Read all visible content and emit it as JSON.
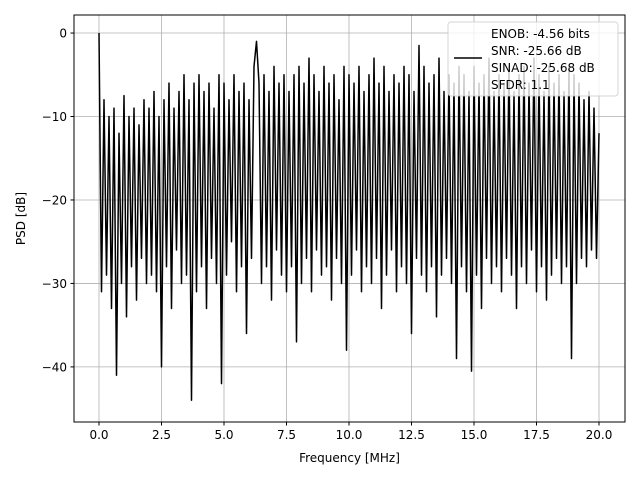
{
  "chart_data": {
    "type": "line",
    "title": "",
    "xlabel": "Frequency [MHz]",
    "ylabel": "PSD [dB]",
    "xlim": [
      -1.0,
      21.04
    ],
    "ylim": [
      -46.6,
      2.16
    ],
    "xticks": [
      0,
      2.5,
      5,
      7.5,
      10,
      12.5,
      15,
      17.5,
      20
    ],
    "xtick_labels": [
      "0.0",
      "2.5",
      "5.0",
      "7.5",
      "10.0",
      "12.5",
      "15.0",
      "17.5",
      "20.0"
    ],
    "yticks": [
      0,
      -10,
      -20,
      -30,
      -40
    ],
    "ytick_labels": [
      "0",
      "−10",
      "−20",
      "−30",
      "−40"
    ],
    "grid": true,
    "legend_placement": "upper-right",
    "legend_entries": [
      "ENOB: -4.56 bits",
      "SNR: -25.66 dB",
      "SINAD: -25.68 dB",
      "SFDR: 1.1"
    ],
    "line_color": "#000000",
    "series": [
      {
        "x_start": 0,
        "x_step": 0.1,
        "values": [
          0,
          -31,
          -8,
          -29,
          -10,
          -33,
          -9,
          -41,
          -12,
          -30,
          -7.5,
          -34,
          -10,
          -28,
          -9,
          -32,
          -11,
          -27,
          -8,
          -30,
          -9,
          -29,
          -7,
          -31,
          -10,
          -40,
          -8,
          -28,
          -6,
          -33,
          -9,
          -26,
          -7,
          -30,
          -5,
          -29,
          -8,
          -44,
          -6,
          -31,
          -5,
          -28,
          -7,
          -33,
          -6,
          -27,
          -9,
          -30,
          -5,
          -42,
          -6,
          -29,
          -8,
          -25,
          -5,
          -31,
          -7,
          -28,
          -6,
          -36,
          -8,
          -27,
          -4,
          -1,
          -6,
          -30,
          -5,
          -28,
          -7,
          -32,
          -4,
          -26,
          -6,
          -29,
          -5,
          -31,
          -7,
          -28,
          -5,
          -37,
          -4,
          -30,
          -6,
          -27,
          -3,
          -31,
          -5,
          -26,
          -7,
          -29,
          -4,
          -28,
          -6,
          -32,
          -5,
          -27,
          -8,
          -30,
          -4,
          -38,
          -5,
          -29,
          -6,
          -26,
          -4,
          -31,
          -7,
          -28,
          -5,
          -30,
          -3,
          -27,
          -6,
          -33,
          -4,
          -29,
          -7,
          -26,
          -5,
          -31,
          -6,
          -28,
          -4,
          -30,
          -5,
          -36,
          -7,
          -27,
          -1.5,
          -29,
          -4,
          -31,
          -6,
          -28,
          -5,
          -34,
          -3,
          -29,
          -7,
          -27,
          -5,
          -30,
          -6,
          -39,
          -4,
          -28,
          -5,
          -31,
          -7,
          -40.5,
          -4,
          -29,
          -6,
          -33,
          -5,
          -27,
          -3,
          -30,
          -7,
          -28,
          -5,
          -31,
          -6,
          -27,
          -4,
          -29,
          -7,
          -33,
          -5,
          -28,
          -4,
          -30,
          -6,
          -26,
          -3,
          -31,
          -5,
          -28,
          -7,
          -32,
          -4,
          -29,
          -6,
          -27,
          -5,
          -30,
          -7,
          -28,
          -4,
          -39,
          -5,
          -30,
          -6,
          -27,
          -8,
          -28,
          -7,
          -26,
          -9,
          -27,
          -12
        ]
      }
    ]
  }
}
